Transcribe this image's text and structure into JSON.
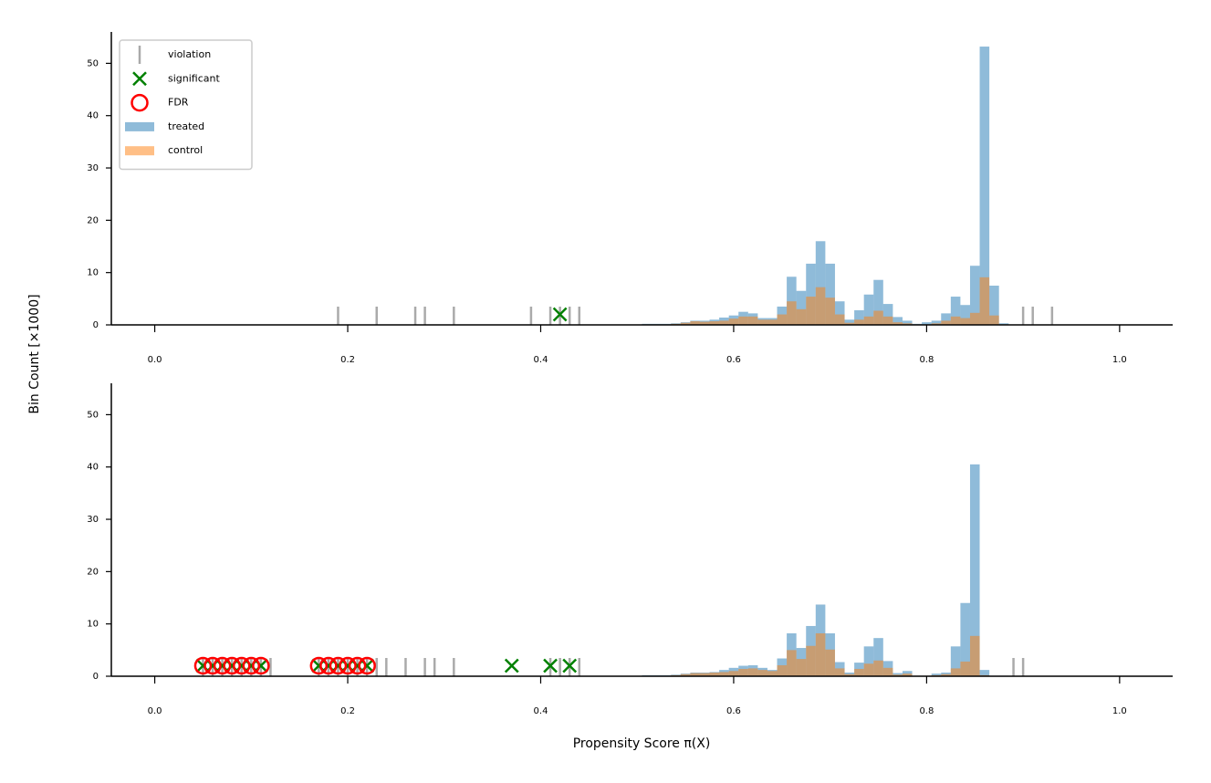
{
  "ylabel": "Bin Count [×1000]",
  "xlabel": "Propensity Score π(X)",
  "chart_data": [
    {
      "type": "histogram",
      "legend": "upper left",
      "xlim": [
        -0.045,
        1.055
      ],
      "xticks": [
        {
          "value": 0,
          "label": "0.0"
        },
        0.2,
        0.4,
        0.6,
        0.8,
        {
          "value": 1,
          "label": "1.0"
        }
      ],
      "ylim": [
        0,
        56
      ],
      "yticks": [
        0,
        10,
        20,
        30,
        40,
        50
      ],
      "bins": [
        0.505,
        0.515,
        0.525,
        0.535,
        0.545,
        0.555,
        0.565,
        0.575,
        0.585,
        0.595,
        0.605,
        0.615,
        0.625,
        0.635,
        0.645,
        0.655,
        0.665,
        0.675,
        0.685,
        0.695,
        0.705,
        0.715,
        0.725,
        0.735,
        0.745,
        0.755,
        0.765,
        0.775,
        0.785,
        0.795,
        0.805,
        0.815,
        0.825,
        0.835,
        0.845,
        0.855,
        0.865,
        0.875,
        0.885
      ],
      "markers": [
        {
          "name": "violation",
          "kind": "vline",
          "color": "#aaaaaa",
          "x": [
            0.19,
            0.23,
            0.27,
            0.28,
            0.31,
            0.39,
            0.41,
            0.42,
            0.43,
            0.44,
            0.9,
            0.91,
            0.93
          ]
        },
        {
          "name": "significant",
          "kind": "x",
          "color": "#008000",
          "x": [
            0.42
          ],
          "y": [
            2
          ]
        },
        {
          "name": "FDR",
          "kind": "circle",
          "color": "#ff0000",
          "x": [],
          "y": []
        }
      ],
      "series": [
        {
          "name": "treated",
          "color": "#1f77b4",
          "values": [
            0.2,
            0.2,
            0.2,
            0.3,
            0.5,
            0.8,
            0.8,
            1.0,
            1.4,
            1.8,
            2.5,
            2.2,
            1.3,
            1.3,
            3.5,
            9.2,
            6.5,
            11.7,
            16.0,
            11.7,
            4.5,
            1.0,
            2.8,
            5.8,
            8.6,
            4.0,
            1.5,
            0.8,
            0.2,
            0.5,
            0.8,
            2.2,
            5.4,
            3.8,
            11.3,
            53.2,
            7.5,
            0.3
          ]
        },
        {
          "name": "control",
          "color": "#ff7f0e",
          "values": [
            0.1,
            0.1,
            0.1,
            0.2,
            0.4,
            0.7,
            0.6,
            0.7,
            0.8,
            1.2,
            1.6,
            1.6,
            1.0,
            1.0,
            2.0,
            4.5,
            3.0,
            5.4,
            7.2,
            5.2,
            2.0,
            0.4,
            1.0,
            1.6,
            2.7,
            1.6,
            0.5,
            0.3,
            0.1,
            0.1,
            0.3,
            0.8,
            1.6,
            1.3,
            2.3,
            9.1,
            1.8,
            0.1
          ]
        }
      ]
    },
    {
      "type": "histogram",
      "xlim": [
        -0.045,
        1.055
      ],
      "xticks": [
        {
          "value": 0,
          "label": "0.0"
        },
        0.2,
        0.4,
        0.6,
        0.8,
        {
          "value": 1,
          "label": "1.0"
        }
      ],
      "ylim": [
        0,
        56
      ],
      "yticks": [
        0,
        10,
        20,
        30,
        40,
        50
      ],
      "bins": [
        0.505,
        0.515,
        0.525,
        0.535,
        0.545,
        0.555,
        0.565,
        0.575,
        0.585,
        0.595,
        0.605,
        0.615,
        0.625,
        0.635,
        0.645,
        0.655,
        0.665,
        0.675,
        0.685,
        0.695,
        0.705,
        0.715,
        0.725,
        0.735,
        0.745,
        0.755,
        0.765,
        0.775,
        0.785,
        0.795,
        0.805,
        0.815,
        0.825,
        0.835,
        0.845,
        0.855,
        0.865,
        0.875,
        0.885
      ],
      "markers": [
        {
          "kind": "vline",
          "color": "#aaaaaa",
          "x": [
            0.05,
            0.06,
            0.07,
            0.08,
            0.09,
            0.1,
            0.11,
            0.12,
            0.17,
            0.18,
            0.19,
            0.2,
            0.21,
            0.22,
            0.23,
            0.24,
            0.26,
            0.28,
            0.29,
            0.31,
            0.41,
            0.42,
            0.43,
            0.44,
            0.89,
            0.9
          ]
        },
        {
          "kind": "x",
          "color": "#008000",
          "x": [
            0.05,
            0.06,
            0.07,
            0.08,
            0.09,
            0.1,
            0.11,
            0.17,
            0.18,
            0.19,
            0.2,
            0.21,
            0.22,
            0.37,
            0.41,
            0.43
          ],
          "y": [
            2,
            2,
            2,
            2,
            2,
            2,
            2,
            2,
            2,
            2,
            2,
            2,
            2,
            2,
            2,
            2
          ]
        },
        {
          "kind": "circle",
          "color": "#ff0000",
          "x": [
            0.05,
            0.06,
            0.07,
            0.08,
            0.09,
            0.1,
            0.11,
            0.17,
            0.18,
            0.19,
            0.2,
            0.21,
            0.22
          ],
          "y": [
            2,
            2,
            2,
            2,
            2,
            2,
            2,
            2,
            2,
            2,
            2,
            2,
            2
          ]
        }
      ],
      "series": [
        {
          "color": "#1f77b4",
          "values": [
            0.2,
            0.2,
            0.2,
            0.3,
            0.5,
            0.7,
            0.7,
            0.8,
            1.2,
            1.6,
            2.0,
            2.1,
            1.6,
            1.2,
            3.4,
            8.2,
            5.4,
            9.6,
            13.7,
            8.2,
            2.7,
            0.7,
            2.6,
            5.7,
            7.3,
            2.9,
            0.6,
            1.0,
            0.1,
            0.1,
            0.5,
            0.7,
            5.7,
            14.0,
            40.5,
            1.2,
            0.1,
            0.1
          ]
        },
        {
          "color": "#ff7f0e",
          "values": [
            0.1,
            0.1,
            0.1,
            0.2,
            0.4,
            0.6,
            0.6,
            0.7,
            0.8,
            1.0,
            1.4,
            1.5,
            1.2,
            1.0,
            2.1,
            5.0,
            3.3,
            5.8,
            8.2,
            5.1,
            1.5,
            0.4,
            1.4,
            2.4,
            3.0,
            1.6,
            0.3,
            0.5,
            0.1,
            0.1,
            0.2,
            0.4,
            1.5,
            2.8,
            7.7,
            0.2,
            0.05,
            0.05
          ]
        }
      ]
    }
  ]
}
